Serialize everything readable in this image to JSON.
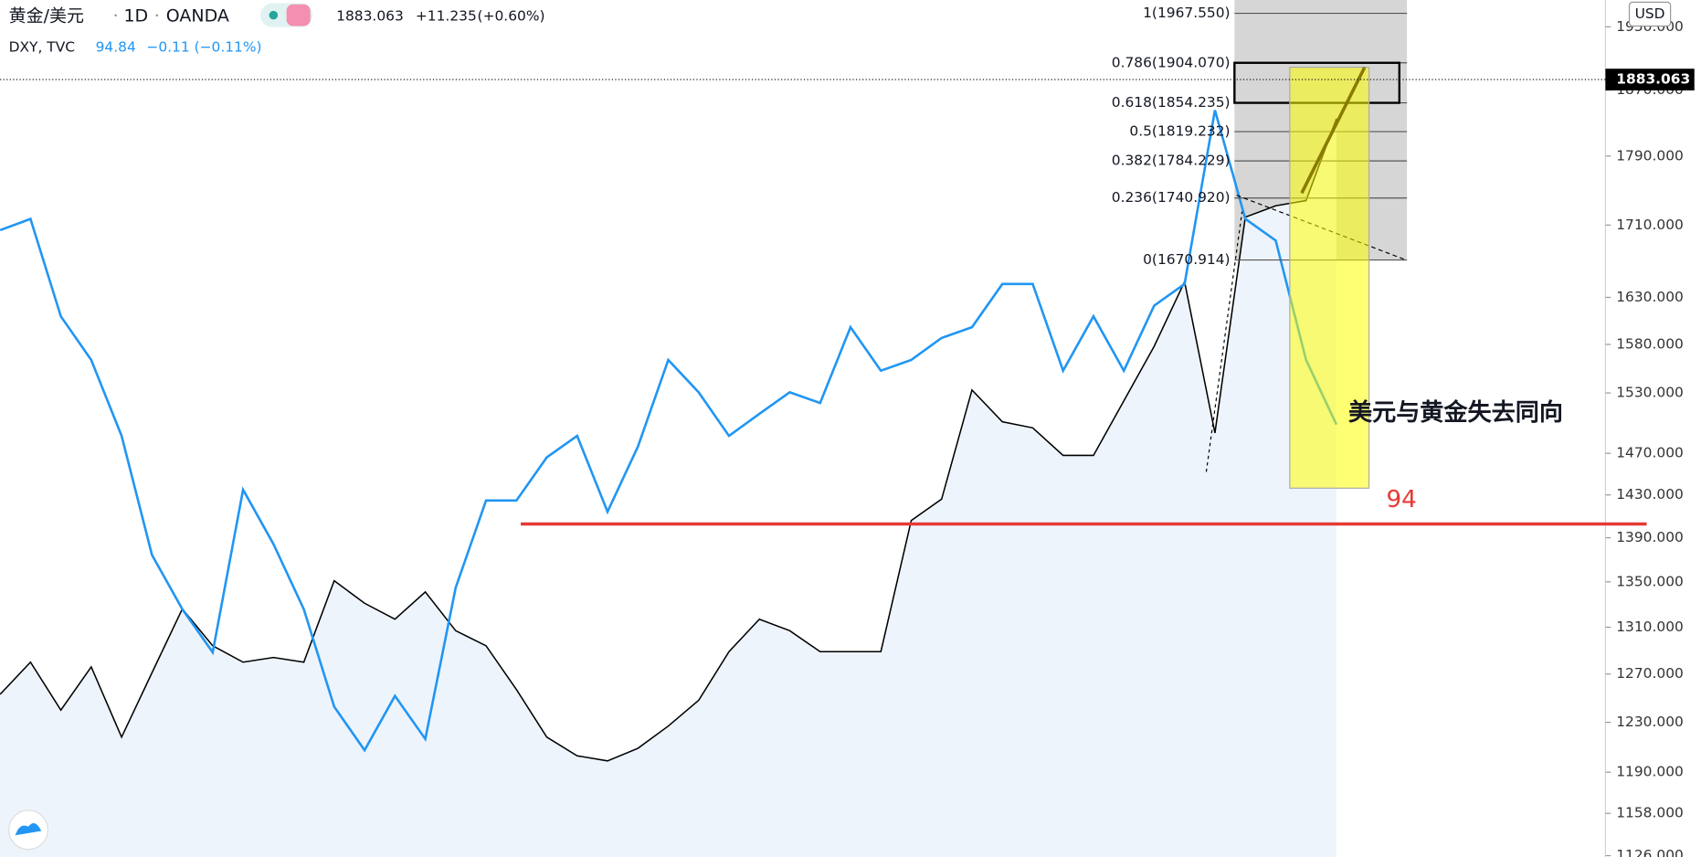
{
  "chart_data": {
    "type": "line",
    "log_scale": true,
    "header": {
      "interval": "1D",
      "exchange": "OANDA",
      "change": "+11.235",
      "change_pct": "(+0.60%)"
    },
    "currency": "USD",
    "last_price": 1883.063,
    "categories": [
      null,
      null,
      null,
      null,
      null,
      null,
      null,
      null,
      null,
      null,
      null,
      null,
      null,
      null,
      null,
      null,
      null,
      null,
      null,
      null,
      null,
      null,
      null,
      null,
      null,
      null,
      null,
      null,
      null,
      null,
      null,
      null,
      null,
      null,
      null,
      null,
      null,
      null,
      null,
      null,
      null,
      null,
      null,
      null,
      null
    ],
    "series": [
      {
        "name": "黄金/美元",
        "color": "#000000",
        "area_color": "#eef4fc",
        "values": [
          1253,
          1280,
          1240,
          1276,
          1218,
          1271,
          1326,
          1294,
          1280,
          1284,
          1280,
          1351,
          1331,
          1317,
          1341,
          1307,
          1294,
          1257,
          1218,
          1203,
          1199,
          1209,
          1227,
          1248,
          1289,
          1317,
          1307,
          1289,
          1289,
          1289,
          1406,
          1426,
          1533,
          1501,
          1495,
          1468,
          1468,
          1522,
          1578,
          1647,
          1490,
          1719,
          1732,
          1738,
          1835
        ]
      },
      {
        "name": "DXY, TVC",
        "color": "#2196f3",
        "axis": "y2",
        "last": "94.84",
        "change": "−0.11 (−0.11%)",
        "values": [
          100.0,
          100.23,
          98.24,
          97.35,
          95.8,
          93.37,
          92.26,
          91.38,
          94.7,
          93.59,
          92.26,
          90.27,
          89.38,
          90.49,
          89.61,
          92.7,
          94.48,
          94.48,
          95.36,
          95.8,
          94.25,
          95.58,
          97.35,
          96.69,
          95.8,
          96.25,
          96.69,
          96.47,
          98.02,
          97.13,
          97.35,
          97.8,
          98.02,
          98.9,
          98.9,
          97.13,
          98.24,
          97.13,
          98.46,
          98.9,
          102.45,
          100.23,
          99.79,
          97.35,
          96.03
        ]
      }
    ],
    "ylim": [
      1125,
      1985
    ],
    "yticks": [
      {
        "value": 1126,
        "label": "1126.000"
      },
      {
        "value": 1158,
        "label": "1158.000"
      },
      {
        "value": 1190,
        "label": "1190.000"
      },
      {
        "value": 1230,
        "label": "1230.000"
      },
      {
        "value": 1270,
        "label": "1270.000"
      },
      {
        "value": 1310,
        "label": "1310.000"
      },
      {
        "value": 1350,
        "label": "1350.000"
      },
      {
        "value": 1390,
        "label": "1390.000"
      },
      {
        "value": 1430,
        "label": "1430.000"
      },
      {
        "value": 1470,
        "label": "1470.000"
      },
      {
        "value": 1530,
        "label": "1530.000"
      },
      {
        "value": 1580,
        "label": "1580.000"
      },
      {
        "value": 1630,
        "label": "1630.000"
      },
      {
        "value": 1710,
        "label": "1710.000"
      },
      {
        "value": 1790,
        "label": "1790.000"
      },
      {
        "value": 1870,
        "label": "1870.000"
      },
      {
        "value": 1950,
        "label": "1950.000"
      }
    ],
    "y2lim": [
      87.2,
      104.7
    ],
    "reference_line": {
      "value": 94,
      "color": "#e53935",
      "axis": "y2"
    },
    "annotation": "美元与黄金失去同向",
    "fib_levels": [
      {
        "label": "1(1967.550)",
        "value": 1967.55
      },
      {
        "label": "0.786(1904.070)",
        "value": 1904.07
      },
      {
        "label": "0.618(1854.235)",
        "value": 1854.235
      },
      {
        "label": "0.5(1819.232)",
        "value": 1819.232
      },
      {
        "label": "0.382(1784.229)",
        "value": 1784.229
      },
      {
        "label": "0.236(1740.920)",
        "value": 1740.92
      },
      {
        "label": "0(1670.914)",
        "value": 1670.914
      }
    ]
  }
}
